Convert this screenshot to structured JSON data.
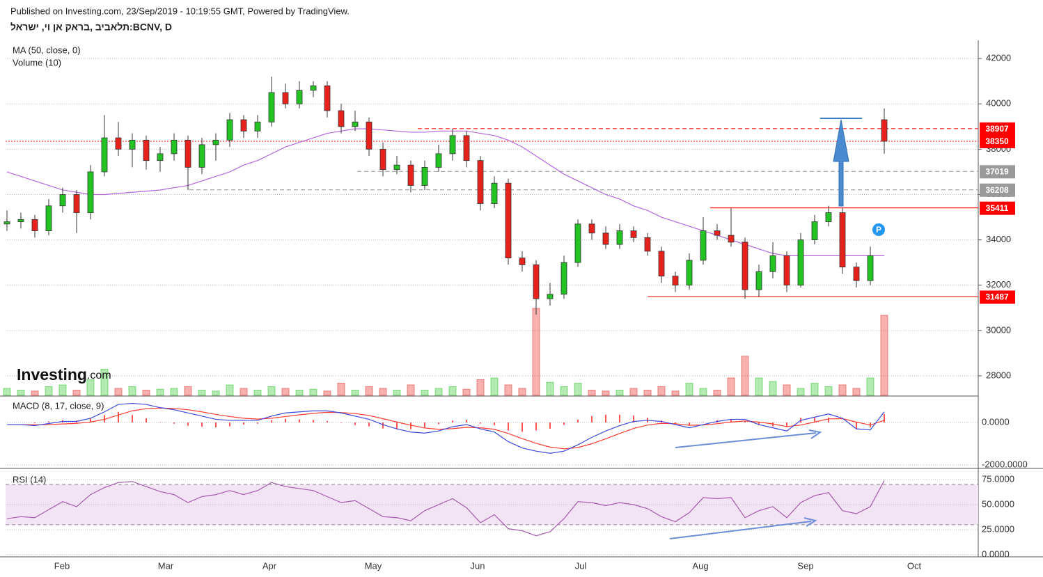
{
  "chart_data": {
    "type": "candlestick",
    "published": "Published on Investing.com, 23/Sep/2019 - 10:19:55 GMT, Powered by TradingView.",
    "title": "תלאביב ,בראק אן וי, ישראל:BCNV, D",
    "ma_label": "MA (50, close, 0)",
    "volume_label": "Volume (10)",
    "logo": [
      "Investing",
      ".com"
    ],
    "marker": "P",
    "months": [
      "Feb",
      "Mar",
      "Apr",
      "May",
      "Jun",
      "Jul",
      "Aug",
      "Sep",
      "Oct"
    ],
    "up_color": "#22c322",
    "down_color": "#e8231e",
    "ylim": [
      27140,
      42740
    ],
    "yticks": [
      28000,
      30000,
      32000,
      34000,
      36000,
      38000,
      40000,
      42000
    ],
    "grid": true,
    "candles": [
      [
        34700,
        35300,
        34400,
        34800
      ],
      [
        34800,
        35200,
        34500,
        34900
      ],
      [
        34900,
        35100,
        34100,
        34400
      ],
      [
        34400,
        35800,
        34200,
        35500
      ],
      [
        35500,
        36300,
        35200,
        36000
      ],
      [
        36000,
        36200,
        34300,
        35200
      ],
      [
        35200,
        37300,
        34900,
        37000
      ],
      [
        37000,
        39500,
        36800,
        38500
      ],
      [
        38500,
        39200,
        37700,
        38000
      ],
      [
        38000,
        38700,
        37200,
        38400
      ],
      [
        38400,
        38600,
        37100,
        37500
      ],
      [
        37500,
        38100,
        37000,
        37800
      ],
      [
        37800,
        38700,
        37500,
        38400
      ],
      [
        38400,
        38600,
        36200,
        37200
      ],
      [
        37200,
        38500,
        36900,
        38200
      ],
      [
        38200,
        38700,
        37500,
        38400
      ],
      [
        38400,
        39600,
        38100,
        39300
      ],
      [
        39300,
        39500,
        38500,
        38800
      ],
      [
        38800,
        39500,
        38500,
        39200
      ],
      [
        39200,
        41200,
        39000,
        40500
      ],
      [
        40500,
        40900,
        39800,
        40000
      ],
      [
        40000,
        41000,
        39800,
        40600
      ],
      [
        40600,
        41000,
        40300,
        40800
      ],
      [
        40800,
        41000,
        39400,
        39700
      ],
      [
        39700,
        40000,
        38700,
        39000
      ],
      [
        39000,
        39700,
        38800,
        39200
      ],
      [
        39200,
        39400,
        37700,
        38000
      ],
      [
        38000,
        38300,
        36800,
        37100
      ],
      [
        37100,
        37700,
        36900,
        37300
      ],
      [
        37300,
        37500,
        36100,
        36400
      ],
      [
        36400,
        37500,
        36200,
        37200
      ],
      [
        37200,
        38200,
        37000,
        37800
      ],
      [
        37800,
        38900,
        37500,
        38600
      ],
      [
        38600,
        38800,
        37200,
        37500
      ],
      [
        37500,
        37700,
        35300,
        35600
      ],
      [
        35600,
        36800,
        35400,
        36500
      ],
      [
        36500,
        36700,
        32900,
        33200
      ],
      [
        33200,
        33500,
        32600,
        32900
      ],
      [
        32900,
        33100,
        30700,
        31400
      ],
      [
        31400,
        32100,
        31100,
        31600
      ],
      [
        31600,
        33300,
        31400,
        33000
      ],
      [
        33000,
        34900,
        32800,
        34700
      ],
      [
        34700,
        34900,
        34000,
        34300
      ],
      [
        34300,
        34600,
        33600,
        33800
      ],
      [
        33800,
        34700,
        33600,
        34400
      ],
      [
        34400,
        34600,
        33900,
        34100
      ],
      [
        34100,
        34300,
        33300,
        33500
      ],
      [
        33500,
        33700,
        32100,
        32400
      ],
      [
        32400,
        32600,
        31700,
        32000
      ],
      [
        32000,
        33400,
        31800,
        33100
      ],
      [
        33100,
        35000,
        32900,
        34400
      ],
      [
        34400,
        34700,
        34000,
        34200
      ],
      [
        34200,
        35400,
        33700,
        33900
      ],
      [
        33900,
        34100,
        31400,
        31800
      ],
      [
        31800,
        32900,
        31500,
        32600
      ],
      [
        32600,
        33900,
        32300,
        33300
      ],
      [
        33300,
        33500,
        31700,
        32000
      ],
      [
        32000,
        34300,
        31900,
        34000
      ],
      [
        34000,
        35100,
        33800,
        34800
      ],
      [
        34800,
        35500,
        34600,
        35200
      ],
      [
        35200,
        35400,
        32500,
        32800
      ],
      [
        32800,
        33000,
        31900,
        32200
      ],
      [
        32200,
        33700,
        32000,
        33300
      ],
      [
        39300,
        39800,
        37800,
        38350
      ]
    ],
    "ma": {
      "color": "#b266e0",
      "values": [
        37000,
        36800,
        36600,
        36400,
        36200,
        36100,
        36000,
        36000,
        36050,
        36100,
        36150,
        36200,
        36300,
        36400,
        36600,
        36800,
        37000,
        37300,
        37500,
        37800,
        38100,
        38300,
        38500,
        38700,
        38800,
        38900,
        38900,
        38850,
        38800,
        38750,
        38750,
        38800,
        38800,
        38800,
        38700,
        38600,
        38400,
        38100,
        37700,
        37300,
        36900,
        36600,
        36300,
        36000,
        35800,
        35500,
        35300,
        35000,
        34800,
        34600,
        34400,
        34200,
        34000,
        33800,
        33600,
        33400,
        33300,
        33300,
        33300,
        33300,
        33300,
        33300,
        33300,
        33300
      ]
    },
    "volume": [
      8,
      6,
      5,
      10,
      12,
      6,
      18,
      30,
      8,
      10,
      6,
      7,
      8,
      10,
      6,
      5,
      12,
      8,
      6,
      10,
      8,
      6,
      7,
      5,
      14,
      6,
      10,
      8,
      6,
      12,
      6,
      8,
      10,
      7,
      18,
      20,
      12,
      8,
      100,
      15,
      10,
      14,
      6,
      5,
      6,
      8,
      6,
      10,
      5,
      14,
      8,
      6,
      20,
      45,
      20,
      16,
      12,
      8,
      14,
      10,
      12,
      8,
      20,
      92
    ],
    "levels": [
      {
        "value": 38907,
        "color": "#ff1a1a",
        "style": "dashed"
      },
      {
        "value": 38350,
        "color": "#ff1a1a",
        "style": "dotted"
      },
      {
        "value": 37019,
        "color": "#9e9e9e",
        "style": "dashed"
      },
      {
        "value": 36208,
        "color": "#9e9e9e",
        "style": "dashed"
      },
      {
        "value": 35411,
        "color": "#ff1a1a",
        "style": "solid"
      },
      {
        "value": 31487,
        "color": "#ff1a1a",
        "style": "solid"
      }
    ],
    "macd": {
      "label": "MACD (8, 17, close, 9)",
      "ylim": [
        -2131,
        1213
      ],
      "yticks": [
        {
          "value": -2000,
          "label": "-2000.0000"
        },
        {
          "value": 0,
          "label": "0.0000"
        }
      ],
      "hist_color": "#ff5252",
      "line": {
        "color": "#3b48e0",
        "values": [
          -100,
          -100,
          -150,
          -50,
          50,
          50,
          200,
          500,
          850,
          900,
          850,
          700,
          600,
          450,
          300,
          150,
          100,
          100,
          100,
          300,
          450,
          500,
          550,
          550,
          450,
          300,
          150,
          -100,
          -300,
          -450,
          -500,
          -400,
          -200,
          -100,
          -300,
          -450,
          -900,
          -1200,
          -1350,
          -1450,
          -1350,
          -1050,
          -700,
          -400,
          -150,
          50,
          100,
          50,
          -100,
          -250,
          -100,
          50,
          150,
          150,
          -100,
          -250,
          -400,
          100,
          250,
          400,
          200,
          -300,
          -350,
          500
        ]
      },
      "signal": {
        "color": "#ff3b30",
        "values": [
          -100,
          -100,
          -110,
          -100,
          -70,
          -40,
          20,
          150,
          350,
          550,
          650,
          680,
          660,
          600,
          500,
          380,
          280,
          200,
          160,
          200,
          280,
          360,
          430,
          480,
          470,
          420,
          330,
          180,
          20,
          -130,
          -260,
          -320,
          -290,
          -230,
          -250,
          -320,
          -520,
          -760,
          -980,
          -1160,
          -1240,
          -1180,
          -1000,
          -770,
          -520,
          -280,
          -120,
          -40,
          -60,
          -130,
          -120,
          -60,
          20,
          70,
          20,
          -70,
          -190,
          -120,
          20,
          170,
          180,
          20,
          -120,
          100
        ]
      }
    },
    "rsi": {
      "label": "RSI (14)",
      "ylim": [
        -2,
        84
      ],
      "band": [
        30,
        70
      ],
      "color": "#a45aac",
      "band_color": "#f3e4f5",
      "yticks": [
        {
          "value": 0,
          "label": "0.0000"
        },
        {
          "value": 25,
          "label": "25.0000"
        },
        {
          "value": 50,
          "label": "50.0000"
        },
        {
          "value": 75,
          "label": "75.0000"
        }
      ],
      "values": [
        36,
        38,
        37,
        45,
        53,
        48,
        60,
        67,
        72,
        73,
        68,
        63,
        60,
        52,
        58,
        60,
        64,
        60,
        64,
        72,
        68,
        66,
        64,
        58,
        52,
        54,
        46,
        38,
        37,
        34,
        44,
        50,
        56,
        47,
        32,
        40,
        26,
        24,
        19,
        23,
        36,
        53,
        52,
        49,
        52,
        50,
        46,
        38,
        33,
        42,
        57,
        56,
        57,
        37,
        44,
        48,
        37,
        52,
        59,
        62,
        44,
        41,
        48,
        74
      ]
    }
  }
}
